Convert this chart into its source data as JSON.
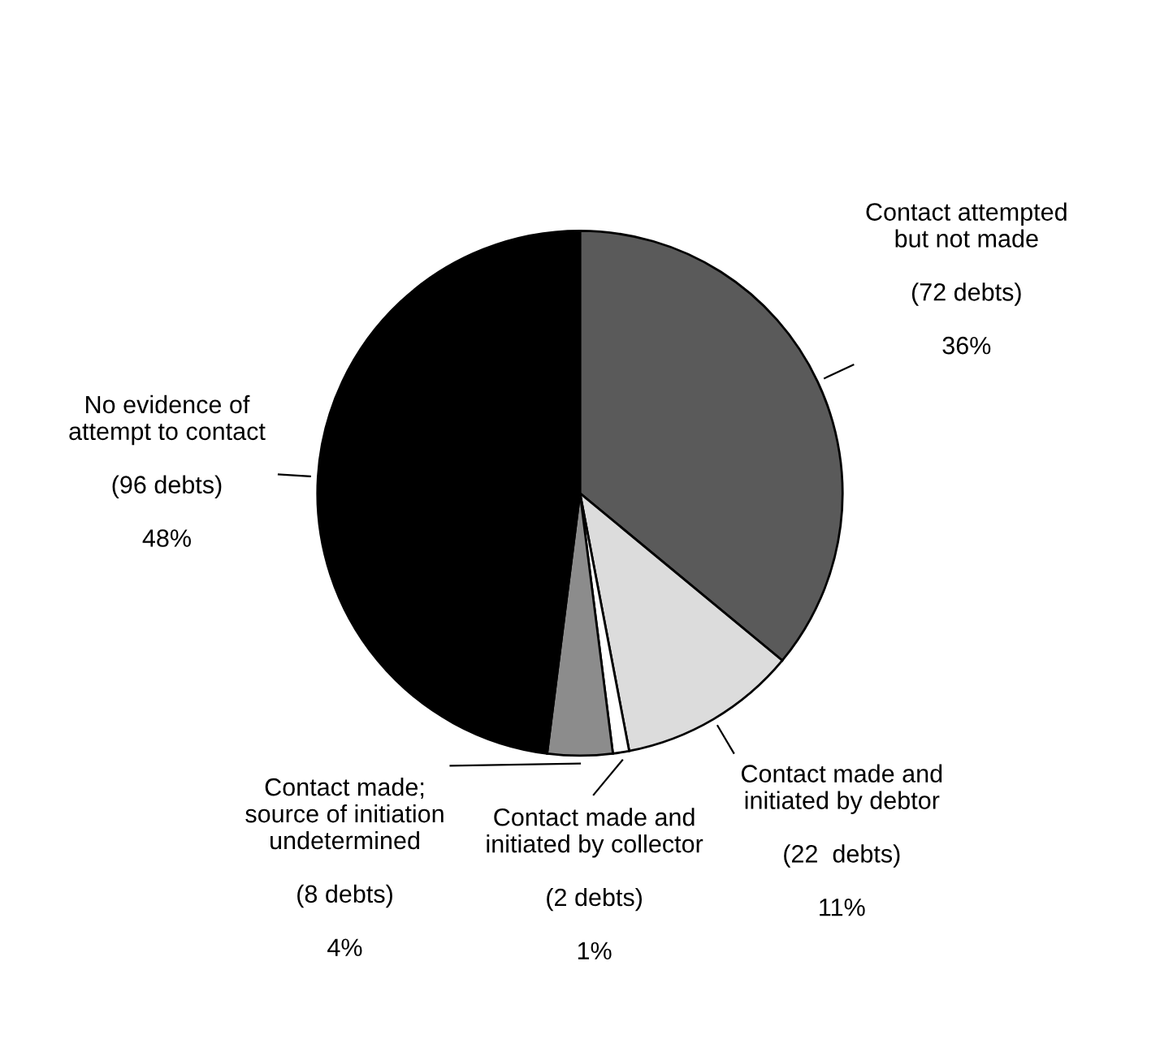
{
  "chart_data": {
    "type": "pie",
    "categories": [
      "Contact attempted\nbut not made",
      "Contact made and\ninitiated by debtor",
      "Contact made and\ninitiated by collector",
      "Contact made;\nsource of initiation\nundetermined",
      "No evidence of\nattempt to contact"
    ],
    "values": [
      36,
      11,
      1,
      4,
      48
    ],
    "value_labels": [
      "(72 debts)\n\n36%",
      "(22  debts)\n\n11%",
      "(2 debts)\n\n1%",
      "(8 debts)\n\n4%",
      "(96 debts)\n\n48%"
    ],
    "colors": [
      "#5a5a5a",
      "#dcdcdc",
      "#ffffff",
      "#8c8c8c",
      "#000000"
    ],
    "legend": false
  }
}
